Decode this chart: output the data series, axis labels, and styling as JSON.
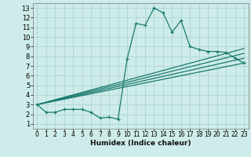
{
  "bg_color": "#ceecea",
  "grid_color": "#b2d8d5",
  "line_color": "#1a7a6e",
  "xlabel": "Humidex (Indice chaleur)",
  "xlim": [
    -0.5,
    23.5
  ],
  "ylim": [
    0.5,
    13.5
  ],
  "xticks": [
    0,
    1,
    2,
    3,
    4,
    5,
    6,
    7,
    8,
    9,
    10,
    11,
    12,
    13,
    14,
    15,
    16,
    17,
    18,
    19,
    20,
    21,
    22,
    23
  ],
  "yticks": [
    1,
    2,
    3,
    4,
    5,
    6,
    7,
    8,
    9,
    10,
    11,
    12,
    13
  ],
  "main_x": [
    0,
    1,
    2,
    3,
    4,
    5,
    6,
    7,
    8,
    9,
    10,
    11,
    12,
    13,
    14,
    15,
    16,
    17,
    18,
    19,
    20,
    21,
    22,
    23
  ],
  "main_y": [
    3.0,
    2.2,
    2.2,
    2.5,
    2.5,
    2.5,
    2.2,
    1.6,
    1.7,
    1.5,
    7.7,
    11.4,
    11.2,
    13.0,
    12.5,
    10.5,
    11.7,
    9.0,
    8.7,
    8.5,
    8.5,
    8.4,
    7.8,
    7.3
  ],
  "fan_lines": [
    {
      "x": [
        0,
        23
      ],
      "y": [
        3.0,
        7.3
      ]
    },
    {
      "x": [
        0,
        23
      ],
      "y": [
        3.0,
        7.8
      ]
    },
    {
      "x": [
        0,
        23
      ],
      "y": [
        3.0,
        8.3
      ]
    },
    {
      "x": [
        0,
        23
      ],
      "y": [
        3.0,
        8.8
      ]
    }
  ],
  "xlabel_fontsize": 6.5,
  "xlabel_fontweight": "bold",
  "tick_fontsize": 5.5,
  "ytick_fontsize": 6.0
}
